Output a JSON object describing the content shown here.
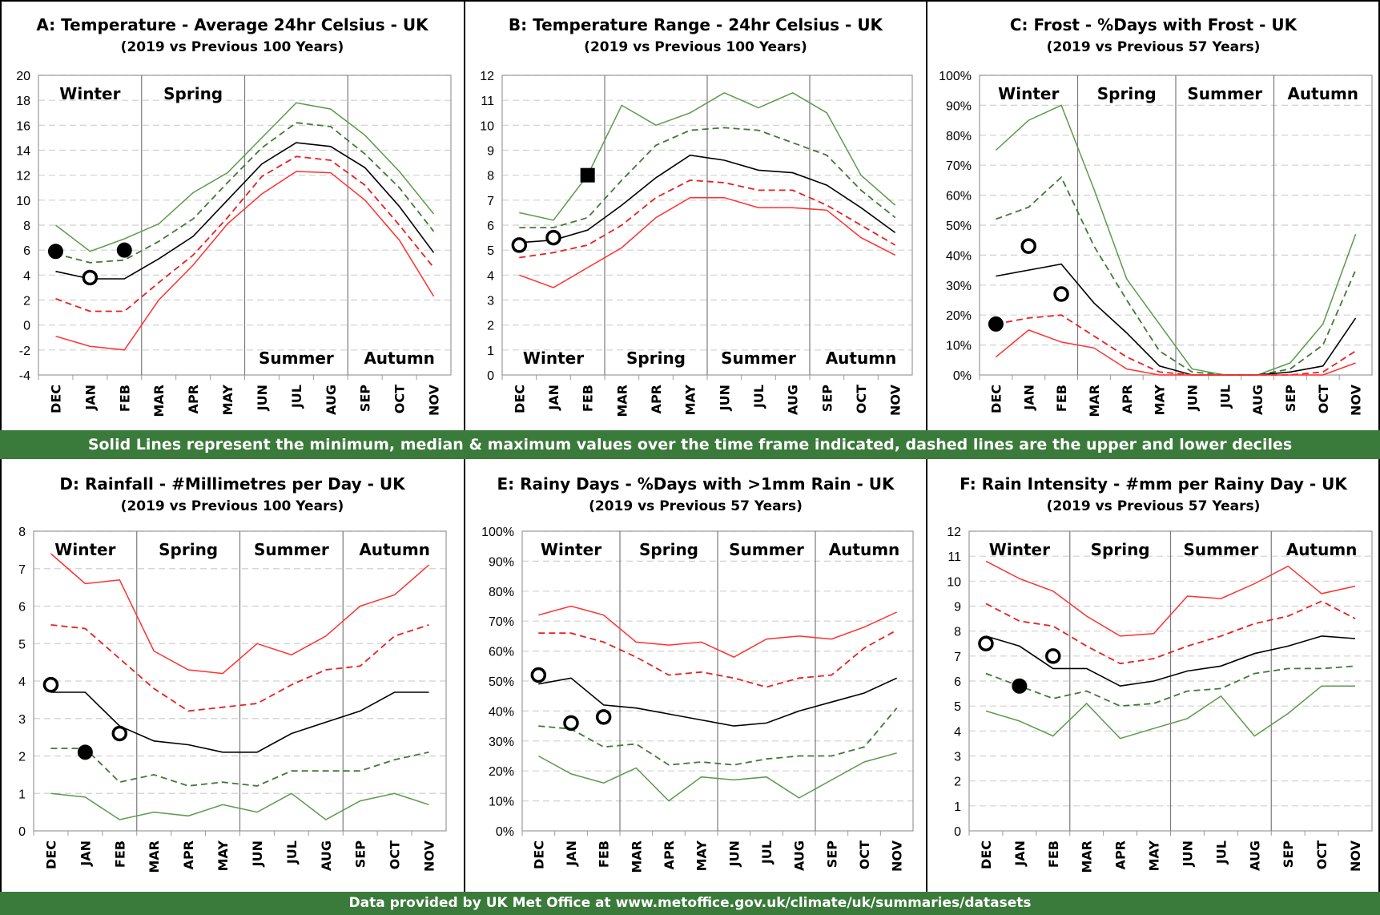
{
  "band_mid": "Solid Lines represent the minimum, median & maximum values over the time frame indicated, dashed lines are the upper and lower deciles",
  "band_bottom": "Data provided by UK Met Office at www.metoffice.gov.uk/climate/uk/summaries/datasets",
  "chart_data": [
    {
      "type": "line",
      "title": "A: Temperature - Average 24hr Celsius - UK",
      "subtitle": "(2019 vs Previous 100 Years)",
      "categories": [
        "DEC",
        "JAN",
        "FEB",
        "MAR",
        "APR",
        "MAY",
        "JUN",
        "JUL",
        "AUG",
        "SEP",
        "OCT",
        "NOV"
      ],
      "ylim": [
        -4,
        20
      ],
      "yticks": [
        -4,
        -2,
        0,
        2,
        4,
        6,
        8,
        10,
        12,
        14,
        16,
        18,
        20
      ],
      "ytick_labels": [
        "-4",
        "-2",
        "0",
        "2",
        "4",
        "6",
        "8",
        "10",
        "12",
        "14",
        "16",
        "18",
        "20"
      ],
      "seasons": [
        {
          "label": "Winter",
          "pos": "top"
        },
        {
          "label": "Spring",
          "pos": "top"
        },
        {
          "label": "Summer",
          "pos": "bottom"
        },
        {
          "label": "Autumn",
          "pos": "bottom"
        }
      ],
      "series": [
        {
          "role": "max",
          "color": "#5b9a4a",
          "dashed": false,
          "values": [
            8.0,
            5.9,
            6.9,
            8.1,
            10.6,
            12.2,
            15.0,
            17.8,
            17.3,
            15.2,
            12.3,
            8.9
          ]
        },
        {
          "role": "upper decile",
          "color": "#3f7a33",
          "dashed": true,
          "values": [
            5.7,
            5.0,
            5.2,
            6.7,
            8.5,
            11.4,
            14.2,
            16.2,
            15.9,
            13.7,
            11.0,
            7.5
          ]
        },
        {
          "role": "median",
          "color": "#000000",
          "dashed": false,
          "values": [
            4.3,
            3.7,
            3.7,
            5.3,
            7.1,
            10.0,
            12.9,
            14.6,
            14.3,
            12.6,
            9.5,
            5.8
          ]
        },
        {
          "role": "lower decile",
          "color": "#e82020",
          "dashed": true,
          "values": [
            2.1,
            1.1,
            1.1,
            3.4,
            5.6,
            8.6,
            11.9,
            13.5,
            13.2,
            11.2,
            8.0,
            4.6
          ]
        },
        {
          "role": "min",
          "color": "#ff3030",
          "dashed": false,
          "values": [
            -0.9,
            -1.7,
            -2.0,
            2.0,
            4.8,
            8.1,
            10.5,
            12.3,
            12.2,
            10.0,
            6.8,
            2.3
          ]
        }
      ],
      "points_2019": [
        {
          "month": "DEC",
          "value": 5.9,
          "style": "filled-circle"
        },
        {
          "month": "JAN",
          "value": 3.8,
          "style": "open-circle"
        },
        {
          "month": "FEB",
          "value": 6.0,
          "style": "filled-circle"
        }
      ]
    },
    {
      "type": "line",
      "title": "B: Temperature Range - 24hr Celsius - UK",
      "subtitle": "(2019 vs Previous 100 Years)",
      "categories": [
        "DEC",
        "JAN",
        "FEB",
        "MAR",
        "APR",
        "MAY",
        "JUN",
        "JUL",
        "AUG",
        "SEP",
        "OCT",
        "NOV"
      ],
      "ylim": [
        0,
        12
      ],
      "yticks": [
        0,
        1,
        2,
        3,
        4,
        5,
        6,
        7,
        8,
        9,
        10,
        11,
        12
      ],
      "ytick_labels": [
        "0",
        "1",
        "2",
        "3",
        "4",
        "5",
        "6",
        "7",
        "8",
        "9",
        "10",
        "11",
        "12"
      ],
      "seasons": [
        {
          "label": "Winter",
          "pos": "bottom"
        },
        {
          "label": "Spring",
          "pos": "bottom"
        },
        {
          "label": "Summer",
          "pos": "bottom"
        },
        {
          "label": "Autumn",
          "pos": "bottom"
        }
      ],
      "series": [
        {
          "role": "max",
          "color": "#5b9a4a",
          "dashed": false,
          "values": [
            6.5,
            6.2,
            8.0,
            10.8,
            10.0,
            10.5,
            11.3,
            10.7,
            11.3,
            10.5,
            8.0,
            6.8
          ]
        },
        {
          "role": "upper decile",
          "color": "#3f7a33",
          "dashed": true,
          "values": [
            5.9,
            5.9,
            6.3,
            7.8,
            9.2,
            9.8,
            9.9,
            9.8,
            9.3,
            8.8,
            7.4,
            6.3
          ]
        },
        {
          "role": "median",
          "color": "#000000",
          "dashed": false,
          "values": [
            5.3,
            5.4,
            5.8,
            6.8,
            7.9,
            8.8,
            8.6,
            8.2,
            8.1,
            7.6,
            6.7,
            5.7
          ]
        },
        {
          "role": "lower decile",
          "color": "#e82020",
          "dashed": true,
          "values": [
            4.7,
            4.9,
            5.2,
            6.0,
            7.1,
            7.8,
            7.7,
            7.4,
            7.4,
            6.8,
            6.0,
            5.2
          ]
        },
        {
          "role": "min",
          "color": "#ff3030",
          "dashed": false,
          "values": [
            4.0,
            3.5,
            4.3,
            5.1,
            6.3,
            7.1,
            7.1,
            6.7,
            6.7,
            6.6,
            5.5,
            4.8
          ]
        }
      ],
      "points_2019": [
        {
          "month": "DEC",
          "value": 5.2,
          "style": "open-circle"
        },
        {
          "month": "JAN",
          "value": 5.5,
          "style": "open-circle"
        },
        {
          "month": "FEB",
          "value": 8.0,
          "style": "filled-square"
        }
      ]
    },
    {
      "type": "line",
      "title": "C: Frost - %Days with Frost - UK",
      "subtitle": "(2019 vs Previous 57 Years)",
      "categories": [
        "DEC",
        "JAN",
        "FEB",
        "MAR",
        "APR",
        "MAY",
        "JUN",
        "JUL",
        "AUG",
        "SEP",
        "OCT",
        "NOV"
      ],
      "ylim": [
        0,
        100
      ],
      "yticks": [
        0,
        10,
        20,
        30,
        40,
        50,
        60,
        70,
        80,
        90,
        100
      ],
      "ytick_labels": [
        "0%",
        "10%",
        "20%",
        "30%",
        "40%",
        "50%",
        "60%",
        "70%",
        "80%",
        "90%",
        "100%"
      ],
      "seasons": [
        {
          "label": "Winter",
          "pos": "top"
        },
        {
          "label": "Spring",
          "pos": "top"
        },
        {
          "label": "Summer",
          "pos": "top"
        },
        {
          "label": "Autumn",
          "pos": "top"
        }
      ],
      "series": [
        {
          "role": "max",
          "color": "#5b9a4a",
          "dashed": false,
          "values": [
            75,
            85,
            90,
            62,
            32,
            17,
            2,
            0,
            0,
            4,
            17,
            47
          ]
        },
        {
          "role": "upper decile",
          "color": "#3f7a33",
          "dashed": true,
          "values": [
            52,
            56,
            66,
            43,
            25,
            8,
            1,
            0,
            0,
            2,
            10,
            35
          ]
        },
        {
          "role": "median",
          "color": "#000000",
          "dashed": false,
          "values": [
            33,
            35,
            37,
            24,
            14,
            3,
            0,
            0,
            0,
            1,
            3,
            19
          ]
        },
        {
          "role": "lower decile",
          "color": "#e82020",
          "dashed": true,
          "values": [
            17,
            19,
            20,
            13,
            6,
            1,
            0,
            0,
            0,
            0,
            1,
            8
          ]
        },
        {
          "role": "min",
          "color": "#ff3030",
          "dashed": false,
          "values": [
            6,
            15,
            11,
            9,
            2,
            0,
            0,
            0,
            0,
            0,
            0,
            4
          ]
        }
      ],
      "points_2019": [
        {
          "month": "DEC",
          "value": 17,
          "style": "filled-circle"
        },
        {
          "month": "JAN",
          "value": 43,
          "style": "open-circle"
        },
        {
          "month": "FEB",
          "value": 27,
          "style": "open-circle"
        }
      ]
    },
    {
      "type": "line",
      "title": "D: Rainfall - #Millimetres per Day - UK",
      "subtitle": "(2019 vs Previous 100 Years)",
      "categories": [
        "DEC",
        "JAN",
        "FEB",
        "MAR",
        "APR",
        "MAY",
        "JUN",
        "JUL",
        "AUG",
        "SEP",
        "OCT",
        "NOV"
      ],
      "ylim": [
        0,
        8
      ],
      "yticks": [
        0,
        1,
        2,
        3,
        4,
        5,
        6,
        7,
        8
      ],
      "ytick_labels": [
        "0",
        "1",
        "2",
        "3",
        "4",
        "5",
        "6",
        "7",
        "8"
      ],
      "seasons": [
        {
          "label": "Winter",
          "pos": "top"
        },
        {
          "label": "Spring",
          "pos": "top"
        },
        {
          "label": "Summer",
          "pos": "top"
        },
        {
          "label": "Autumn",
          "pos": "top"
        }
      ],
      "series": [
        {
          "role": "max",
          "color": "#ff3030",
          "dashed": false,
          "values": [
            7.4,
            6.6,
            6.7,
            4.8,
            4.3,
            4.2,
            5.0,
            4.7,
            5.2,
            6.0,
            6.3,
            7.1
          ]
        },
        {
          "role": "upper decile",
          "color": "#e82020",
          "dashed": true,
          "values": [
            5.5,
            5.4,
            4.6,
            3.8,
            3.2,
            3.3,
            3.4,
            3.9,
            4.3,
            4.4,
            5.2,
            5.5
          ]
        },
        {
          "role": "median",
          "color": "#000000",
          "dashed": false,
          "values": [
            3.7,
            3.7,
            2.8,
            2.4,
            2.3,
            2.1,
            2.1,
            2.6,
            2.9,
            3.2,
            3.7,
            3.7
          ]
        },
        {
          "role": "lower decile",
          "color": "#3f7a33",
          "dashed": true,
          "values": [
            2.2,
            2.2,
            1.3,
            1.5,
            1.2,
            1.3,
            1.2,
            1.6,
            1.6,
            1.6,
            1.9,
            2.1
          ]
        },
        {
          "role": "min",
          "color": "#5b9a4a",
          "dashed": false,
          "values": [
            1.0,
            0.9,
            0.3,
            0.5,
            0.4,
            0.7,
            0.5,
            1.0,
            0.3,
            0.8,
            1.0,
            0.7
          ]
        }
      ],
      "points_2019": [
        {
          "month": "DEC",
          "value": 3.9,
          "style": "open-circle"
        },
        {
          "month": "JAN",
          "value": 2.1,
          "style": "filled-circle"
        },
        {
          "month": "FEB",
          "value": 2.6,
          "style": "open-circle"
        }
      ]
    },
    {
      "type": "line",
      "title": "E: Rainy Days - %Days with >1mm Rain - UK",
      "subtitle": "(2019 vs Previous 57 Years)",
      "categories": [
        "DEC",
        "JAN",
        "FEB",
        "MAR",
        "APR",
        "MAY",
        "JUN",
        "JUL",
        "AUG",
        "SEP",
        "OCT",
        "NOV"
      ],
      "ylim": [
        0,
        100
      ],
      "yticks": [
        0,
        10,
        20,
        30,
        40,
        50,
        60,
        70,
        80,
        90,
        100
      ],
      "ytick_labels": [
        "0%",
        "10%",
        "20%",
        "30%",
        "40%",
        "50%",
        "60%",
        "70%",
        "80%",
        "90%",
        "100%"
      ],
      "seasons": [
        {
          "label": "Winter",
          "pos": "top"
        },
        {
          "label": "Spring",
          "pos": "top"
        },
        {
          "label": "Summer",
          "pos": "top"
        },
        {
          "label": "Autumn",
          "pos": "top"
        }
      ],
      "series": [
        {
          "role": "max",
          "color": "#ff3030",
          "dashed": false,
          "values": [
            72,
            75,
            72,
            63,
            62,
            63,
            58,
            64,
            65,
            64,
            68,
            73
          ]
        },
        {
          "role": "upper decile",
          "color": "#e82020",
          "dashed": true,
          "values": [
            66,
            66,
            63,
            58,
            52,
            53,
            51,
            48,
            51,
            52,
            61,
            67
          ]
        },
        {
          "role": "median",
          "color": "#000000",
          "dashed": false,
          "values": [
            49,
            51,
            42,
            41,
            39,
            37,
            35,
            36,
            40,
            43,
            46,
            51
          ]
        },
        {
          "role": "lower decile",
          "color": "#3f7a33",
          "dashed": true,
          "values": [
            35,
            34,
            28,
            29,
            22,
            23,
            22,
            24,
            25,
            25,
            28,
            41
          ]
        },
        {
          "role": "min",
          "color": "#5b9a4a",
          "dashed": false,
          "values": [
            25,
            19,
            16,
            21,
            10,
            18,
            17,
            18,
            11,
            17,
            23,
            26
          ]
        }
      ],
      "points_2019": [
        {
          "month": "DEC",
          "value": 52,
          "style": "open-circle"
        },
        {
          "month": "JAN",
          "value": 36,
          "style": "open-circle"
        },
        {
          "month": "FEB",
          "value": 38,
          "style": "open-circle"
        }
      ]
    },
    {
      "type": "line",
      "title": "F: Rain Intensity - #mm per Rainy Day - UK",
      "subtitle": "(2019 vs Previous 57 Years)",
      "categories": [
        "DEC",
        "JAN",
        "FEB",
        "MAR",
        "APR",
        "MAY",
        "JUN",
        "JUL",
        "AUG",
        "SEP",
        "OCT",
        "NOV"
      ],
      "ylim": [
        0,
        12
      ],
      "yticks": [
        0,
        1,
        2,
        3,
        4,
        5,
        6,
        7,
        8,
        9,
        10,
        11,
        12
      ],
      "ytick_labels": [
        "0",
        "1",
        "2",
        "3",
        "4",
        "5",
        "6",
        "7",
        "8",
        "9",
        "10",
        "11",
        "12"
      ],
      "seasons": [
        {
          "label": "Winter",
          "pos": "top"
        },
        {
          "label": "Spring",
          "pos": "top"
        },
        {
          "label": "Summer",
          "pos": "top"
        },
        {
          "label": "Autumn",
          "pos": "top"
        }
      ],
      "series": [
        {
          "role": "max",
          "color": "#ff3030",
          "dashed": false,
          "values": [
            10.8,
            10.1,
            9.6,
            8.6,
            7.8,
            7.9,
            9.4,
            9.3,
            9.9,
            10.6,
            9.5,
            9.8
          ]
        },
        {
          "role": "upper decile",
          "color": "#e82020",
          "dashed": true,
          "values": [
            9.1,
            8.4,
            8.2,
            7.4,
            6.7,
            6.9,
            7.4,
            7.8,
            8.3,
            8.6,
            9.2,
            8.5
          ]
        },
        {
          "role": "median",
          "color": "#000000",
          "dashed": false,
          "values": [
            7.8,
            7.4,
            6.5,
            6.5,
            5.8,
            6.0,
            6.4,
            6.6,
            7.1,
            7.4,
            7.8,
            7.7
          ]
        },
        {
          "role": "lower decile",
          "color": "#3f7a33",
          "dashed": true,
          "values": [
            6.3,
            5.8,
            5.3,
            5.6,
            5.0,
            5.1,
            5.6,
            5.7,
            6.3,
            6.5,
            6.5,
            6.6
          ]
        },
        {
          "role": "min",
          "color": "#5b9a4a",
          "dashed": false,
          "values": [
            4.8,
            4.4,
            3.8,
            5.1,
            3.7,
            4.1,
            4.5,
            5.4,
            3.8,
            4.7,
            5.8,
            5.8
          ]
        }
      ],
      "points_2019": [
        {
          "month": "DEC",
          "value": 7.5,
          "style": "open-circle"
        },
        {
          "month": "JAN",
          "value": 5.8,
          "style": "filled-circle"
        },
        {
          "month": "FEB",
          "value": 7.0,
          "style": "open-circle"
        }
      ]
    }
  ]
}
